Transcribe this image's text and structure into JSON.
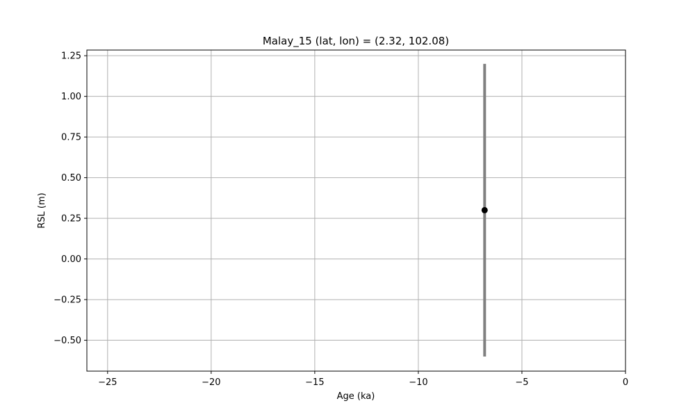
{
  "chart_data": {
    "type": "scatter",
    "title": "Malay_15 (lat, lon) = (2.32, 102.08)",
    "xlabel": "Age (ka)",
    "ylabel": "RSL (m)",
    "xlim": [
      -26.0,
      0.0
    ],
    "ylim": [
      -0.69,
      1.285
    ],
    "xticks": [
      -25,
      -20,
      -15,
      -10,
      -5,
      0
    ],
    "xtick_labels": [
      "−25",
      "−20",
      "−15",
      "−10",
      "−5",
      "0"
    ],
    "yticks": [
      -0.5,
      -0.25,
      0.0,
      0.25,
      0.5,
      0.75,
      1.0,
      1.25
    ],
    "ytick_labels": [
      "−0.50",
      "−0.25",
      "0.00",
      "0.25",
      "0.50",
      "0.75",
      "1.00",
      "1.25"
    ],
    "grid": true,
    "points": [
      {
        "x": -6.8,
        "y": 0.3,
        "yerr_low": -0.6,
        "yerr_high": 1.2
      }
    ],
    "colors": {
      "marker": "#000000",
      "errorbar": "#808080",
      "grid": "#b0b0b0",
      "axes": "#000000"
    }
  }
}
